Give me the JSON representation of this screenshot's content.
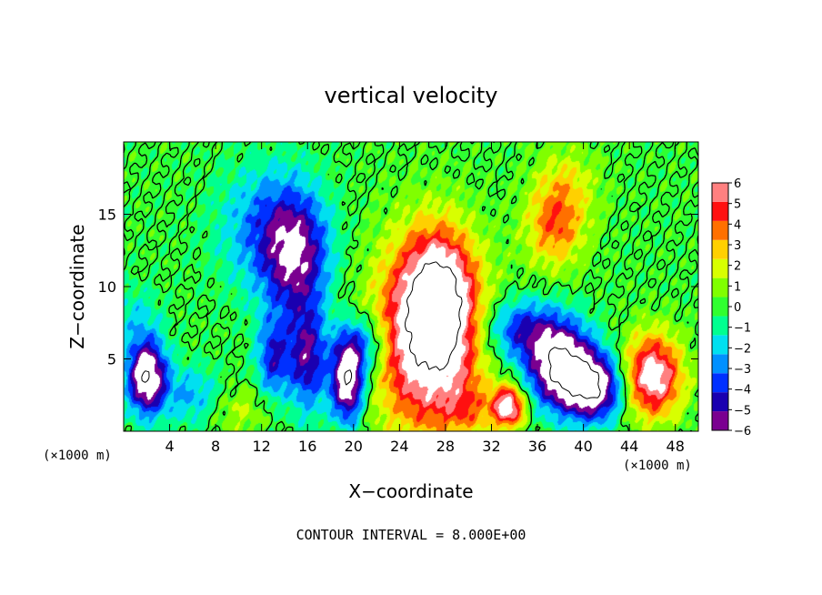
{
  "chart_data": {
    "type": "heatmap",
    "title": "vertical velocity",
    "xlabel": "X−coordinate",
    "ylabel": "Z−coordinate",
    "x_unit_left": "(×1000 m)",
    "x_unit_right": "(×1000 m)",
    "footer": "CONTOUR INTERVAL = 8.000E+00",
    "xlim": [
      0,
      50
    ],
    "ylim": [
      0,
      20
    ],
    "x_ticks": [
      4,
      8,
      12,
      16,
      20,
      24,
      28,
      32,
      36,
      40,
      44,
      48
    ],
    "x_tick_labels": [
      "4",
      "8",
      "12",
      "16",
      "20",
      "24",
      "28",
      "32",
      "36",
      "40",
      "44",
      "48"
    ],
    "y_ticks": [
      5,
      10,
      15
    ],
    "y_tick_labels": [
      "5",
      "10",
      "15"
    ],
    "colorbar": {
      "min": -6,
      "max": 6,
      "tick_labels": [
        "6",
        "5",
        "4",
        "3",
        "2",
        "1",
        "0",
        "−1",
        "−2",
        "−3",
        "−4",
        "−5",
        "−6"
      ],
      "colors": [
        "#7a0090",
        "#1a00b0",
        "#0030ff",
        "#0090ff",
        "#00e0f0",
        "#00ff90",
        "#30ff30",
        "#80ff00",
        "#d8ff00",
        "#ffd000",
        "#ff7000",
        "#ff1010",
        "#ff8080"
      ]
    },
    "features": [
      {
        "kind": "updraft",
        "x": 26.5,
        "z": 6.5,
        "sx": 3.2,
        "sz": 4.5,
        "w": 8
      },
      {
        "kind": "updraft",
        "x": 27.5,
        "z": 9.5,
        "sx": 2.0,
        "sz": 3.0,
        "w": 5
      },
      {
        "kind": "updraft",
        "x": 33.5,
        "z": 1.7,
        "sx": 1.0,
        "sz": 1.0,
        "w": 7
      },
      {
        "kind": "updraft",
        "x": 46.0,
        "z": 3.8,
        "sx": 1.8,
        "sz": 2.0,
        "w": 7
      },
      {
        "kind": "updraft",
        "x": 37.5,
        "z": 14.0,
        "sx": 1.8,
        "sz": 2.0,
        "w": 3.5
      },
      {
        "kind": "updraft",
        "x": 38.5,
        "z": 17.0,
        "sx": 2.0,
        "sz": 2.0,
        "w": 2
      },
      {
        "kind": "updraft",
        "x": 10.0,
        "z": 1.5,
        "sx": 2.0,
        "sz": 1.2,
        "w": 1.5
      },
      {
        "kind": "updraft",
        "x": 30.0,
        "z": 1.5,
        "sx": 1.5,
        "sz": 1.2,
        "w": 2
      },
      {
        "kind": "downdraft",
        "x": 38.0,
        "z": 4.5,
        "sx": 2.0,
        "sz": 2.0,
        "w": -8
      },
      {
        "kind": "downdraft",
        "x": 41.0,
        "z": 3.0,
        "sx": 1.8,
        "sz": 1.6,
        "w": -7
      },
      {
        "kind": "downdraft",
        "x": 34.5,
        "z": 7.0,
        "sx": 2.5,
        "sz": 1.5,
        "w": -4
      },
      {
        "kind": "downdraft",
        "x": 2.0,
        "z": 3.8,
        "sx": 1.2,
        "sz": 1.8,
        "w": -8
      },
      {
        "kind": "downdraft",
        "x": 19.5,
        "z": 3.5,
        "sx": 1.0,
        "sz": 2.0,
        "w": -8
      },
      {
        "kind": "downdraft",
        "x": 15.0,
        "z": 12.0,
        "sx": 2.0,
        "sz": 3.0,
        "w": -5
      },
      {
        "kind": "downdraft",
        "x": 12.5,
        "z": 14.0,
        "sx": 3.0,
        "sz": 3.0,
        "w": -3
      },
      {
        "kind": "downdraft",
        "x": 16.0,
        "z": 5.0,
        "sx": 1.2,
        "sz": 2.5,
        "w": -5
      },
      {
        "kind": "downdraft",
        "x": 13.0,
        "z": 5.0,
        "sx": 1.0,
        "sz": 2.0,
        "w": -4
      },
      {
        "kind": "downdraft",
        "x": 21.0,
        "z": 6.0,
        "sx": 1.5,
        "sz": 1.5,
        "w": -3.5
      },
      {
        "kind": "downdraft",
        "x": 6.0,
        "z": 2.5,
        "sx": 1.8,
        "sz": 1.4,
        "w": -2.5
      },
      {
        "kind": "downdraft",
        "x": 1.0,
        "z": 8.0,
        "sx": 1.5,
        "sz": 1.5,
        "w": -1.5
      }
    ]
  }
}
